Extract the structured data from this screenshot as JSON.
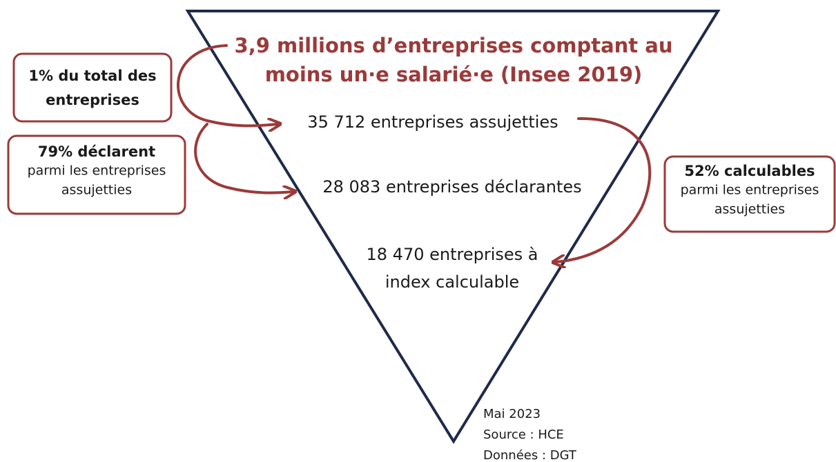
{
  "title": {
    "lines": [
      "3,9 millions d’entreprises comptant au",
      "moins un·e salarié·e (Insee 2019)"
    ]
  },
  "levels": [
    {
      "lines": [
        "35 712 entreprises assujetties"
      ]
    },
    {
      "lines": [
        "28 083 entreprises déclarantes"
      ]
    },
    {
      "lines": [
        "18 470 entreprises à",
        "index calculable"
      ]
    }
  ],
  "callouts": [
    {
      "bold": [
        "1% du total des",
        "entreprises"
      ],
      "text": []
    },
    {
      "bold": [
        "79% déclarent"
      ],
      "text": [
        "parmi les entreprises",
        "assujetties"
      ]
    },
    {
      "bold": [
        "52% calculables"
      ],
      "text": [
        "parmi les entreprises",
        "assujetties"
      ]
    }
  ],
  "footer": [
    "Mai 2023",
    "Source : HCE",
    "Données : DGT"
  ]
}
